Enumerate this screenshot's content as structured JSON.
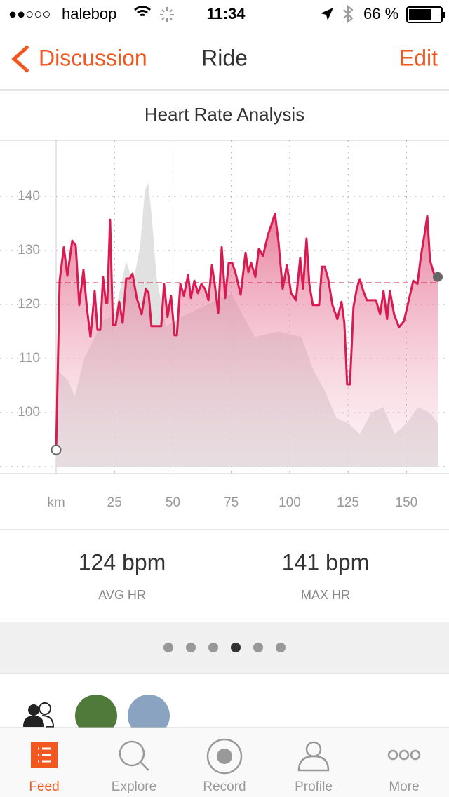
{
  "status_bar": {
    "signal": "●●○○○",
    "carrier": "halebop",
    "time": "11:34",
    "battery": "66 %"
  },
  "nav": {
    "back": "Discussion",
    "title": "Ride",
    "action": "Edit"
  },
  "chart_data": {
    "type": "line",
    "title": "Heart Rate Analysis",
    "x": [
      0,
      1.5,
      3.3,
      4.8,
      6.9,
      8.4,
      9.9,
      11.7,
      13.2,
      14.7,
      16.5,
      17.7,
      18.9,
      20.1,
      21.3,
      21.9,
      23.1,
      24.3,
      25.5,
      27,
      28.5,
      30,
      31.5,
      32.7,
      34.5,
      36.6,
      38.4,
      39.6,
      40.8,
      42.6,
      45,
      46.2,
      47.7,
      49.2,
      50.7,
      51.7,
      53.2,
      54.7,
      56.5,
      57.7,
      59.2,
      60.7,
      62.2,
      63.7,
      65.2,
      66.7,
      67.9,
      69.4,
      70.9,
      72.4,
      73.9,
      75.4,
      76.9,
      79,
      81.1,
      82.3,
      83.5,
      85.3,
      86.8,
      88.6,
      90.7,
      92.2,
      93.7,
      95.2,
      97,
      98.8,
      100.6,
      102.7,
      104.5,
      105.7,
      107.2,
      108.4,
      109.9,
      111.4,
      112.6,
      113.8,
      115,
      116.5,
      118.3,
      120.4,
      122.2,
      123.4,
      124.6,
      125.8,
      127.3,
      128.8,
      130,
      131.5,
      133,
      135.1,
      136.9,
      138.7,
      140.2,
      141.7,
      142.9,
      144.7,
      146.8,
      148.9,
      151,
      152.9,
      154.7,
      156.2,
      157.7,
      158.9,
      160.1,
      162.2,
      163.4
    ],
    "series": [
      {
        "color": "#d81b50",
        "values": [
          93.1,
          124.4,
          130.6,
          125.3,
          131.8,
          130.9,
          119.9,
          126.4,
          119.2,
          114,
          122.5,
          115.3,
          115.3,
          125.1,
          120.3,
          120.3,
          135.7,
          116.2,
          116.2,
          120.5,
          116.6,
          124.8,
          124.8,
          125.7,
          121.2,
          118.2,
          122.9,
          122.1,
          116,
          116,
          116,
          123.8,
          117.7,
          121.6,
          114.3,
          114.3,
          123.8,
          121.6,
          125.5,
          121.2,
          124.4,
          122.1,
          123.8,
          122.9,
          120.8,
          127.3,
          123.8,
          118.4,
          130.6,
          121.2,
          127.7,
          127.7,
          125.7,
          121.8,
          129.6,
          126,
          127.7,
          125.1,
          130.3,
          129,
          132.9,
          134.8,
          136.8,
          131.6,
          122.9,
          127.3,
          122.1,
          120.8,
          128.6,
          122.9,
          132.2,
          123.8,
          119.9,
          119.9,
          119.9,
          127,
          127,
          124.7,
          119.9,
          117.3,
          120.5,
          116.6,
          105.2,
          105.2,
          119.5,
          123.1,
          124.7,
          122.5,
          120.8,
          120.8,
          120.8,
          118.2,
          122.5,
          117.3,
          122.5,
          118.2,
          115.8,
          116.9,
          120.8,
          124.4,
          123.8,
          129,
          132.9,
          136.4,
          128.1,
          125.1,
          125.1
        ]
      },
      {
        "color": "#dcdcdc",
        "x": [
          0,
          5,
          8,
          12,
          20,
          25,
          30,
          33,
          36,
          38,
          39.5,
          41,
          43,
          47,
          55,
          65,
          75,
          85,
          95,
          105,
          110,
          115,
          120,
          125,
          130,
          135,
          140,
          145,
          150,
          155,
          160,
          163.4
        ],
        "values": [
          108,
          106,
          103,
          110,
          117,
          118,
          128,
          124,
          131,
          141,
          142.5,
          136,
          125,
          116,
          118,
          120,
          122,
          114,
          115,
          114,
          108,
          104,
          99,
          98,
          96,
          100,
          101,
          96,
          98,
          101,
          100,
          98
        ]
      }
    ],
    "average": 124,
    "xlim": [
      0,
      164
    ],
    "ylim": [
      90,
      150
    ],
    "xticks": [
      {
        "value": 0,
        "label": "km"
      },
      25,
      50,
      75,
      100,
      125,
      150
    ],
    "yticks": [
      100,
      110,
      120,
      130,
      140
    ],
    "grid": true
  },
  "stats": [
    {
      "value": "124 bpm",
      "label": "AVG HR"
    },
    {
      "value": "141 bpm",
      "label": "MAX HR"
    }
  ],
  "tabs": [
    "Feed",
    "Explore",
    "Record",
    "Profile",
    "More"
  ]
}
